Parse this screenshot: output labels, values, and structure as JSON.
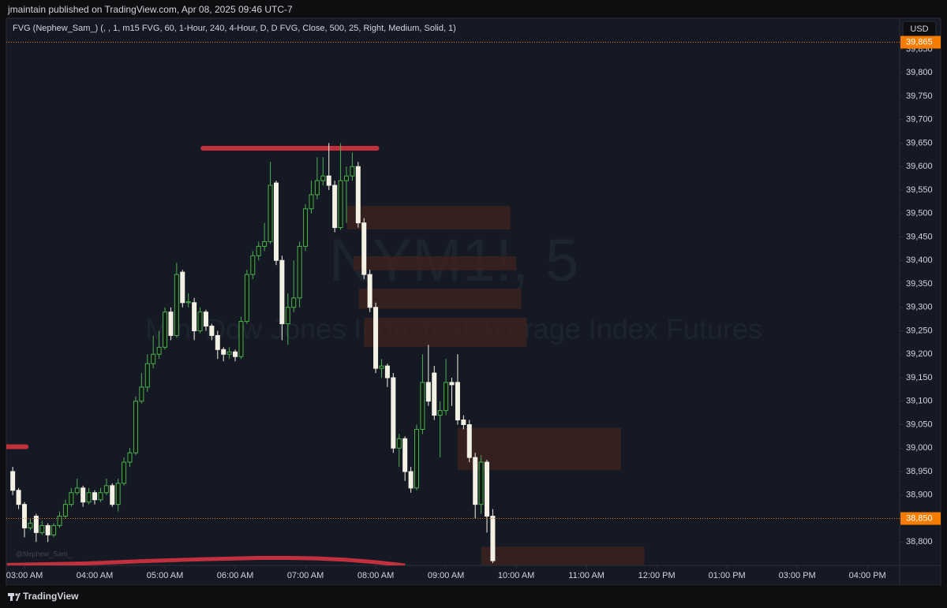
{
  "header": {
    "title": "jmaintain published on TradingView.com, Apr 08, 2025 09:46 UTC-7"
  },
  "footer": {
    "brand": "TradingView"
  },
  "chart_data": {
    "type": "candlestick",
    "indicator": "FVG (Nephew_Sam_) (, , 1, m15 FVG, 60, 1-Hour, 240, 4-Hour, D, D FVG, Close, 500, 25, Right, Medium, Solid, 1)",
    "symbol_watermark": "NYM1!, 5",
    "description_watermark": "Mini Dow Jones Industrial Average Index Futures",
    "author_watermark": "@Nephew_Sam_",
    "currency": "USD",
    "x": [
      -2,
      -1,
      0,
      1,
      2,
      3,
      4,
      5,
      6,
      7,
      8,
      9,
      10,
      11,
      12,
      13,
      14,
      15,
      16,
      17,
      18,
      19,
      20,
      21,
      22,
      23,
      24,
      25,
      26,
      27,
      28,
      29,
      30,
      31,
      32,
      33,
      34,
      35,
      36,
      37,
      38,
      39,
      40,
      41,
      42,
      43,
      44,
      45,
      46,
      47,
      48,
      49,
      50,
      51,
      52,
      53,
      54,
      55,
      56,
      57,
      58,
      59,
      60,
      61,
      62,
      63,
      64,
      65,
      66,
      67,
      68,
      69,
      70,
      71,
      72,
      73,
      74,
      75,
      76,
      77,
      78,
      79,
      80
    ],
    "open": [
      38950,
      38910,
      38880,
      38830,
      38855,
      38820,
      38835,
      38815,
      38835,
      38855,
      38880,
      38905,
      38915,
      38885,
      38905,
      38890,
      38905,
      38920,
      38880,
      38925,
      38970,
      38990,
      39100,
      39130,
      39180,
      39200,
      39215,
      39290,
      39240,
      39375,
      39310,
      39310,
      39250,
      39290,
      39260,
      39240,
      39210,
      39200,
      39205,
      39195,
      39270,
      39370,
      39410,
      39430,
      39440,
      39565,
      39400,
      39265,
      39300,
      39320,
      39430,
      39510,
      39540,
      39570,
      39580,
      39560,
      39470,
      39570,
      39580,
      39600,
      39480,
      39370,
      39300,
      39170,
      39175,
      39150,
      39000,
      39020,
      38950,
      38915,
      39040,
      39140,
      39160,
      39070,
      39080,
      39140,
      39140,
      39060,
      39050,
      38980,
      38880,
      38970,
      38855
    ],
    "high": [
      38960,
      38915,
      38885,
      38850,
      38860,
      38845,
      38840,
      38840,
      38865,
      38890,
      38915,
      38935,
      38920,
      38915,
      38910,
      38915,
      38935,
      38925,
      38935,
      38980,
      39000,
      39110,
      39160,
      39200,
      39240,
      39250,
      39300,
      39300,
      39395,
      39380,
      39330,
      39320,
      39300,
      39295,
      39265,
      39250,
      39215,
      39215,
      39210,
      39280,
      39380,
      39420,
      39440,
      39480,
      39610,
      39570,
      39410,
      39330,
      39400,
      39440,
      39520,
      39570,
      39620,
      39620,
      39650,
      39570,
      39650,
      39600,
      39630,
      39610,
      39490,
      39380,
      39310,
      39190,
      39180,
      39160,
      39030,
      39025,
      38960,
      39050,
      39200,
      39220,
      39175,
      39100,
      39190,
      39150,
      39200,
      39070,
      39060,
      38990,
      38985,
      38975,
      38870
    ],
    "low": [
      38900,
      38870,
      38810,
      38825,
      38800,
      38815,
      38800,
      38810,
      38830,
      38850,
      38875,
      38900,
      38875,
      38880,
      38880,
      38885,
      38900,
      38875,
      38865,
      38920,
      38960,
      38985,
      39095,
      39120,
      39170,
      39190,
      39210,
      39230,
      39235,
      39300,
      39300,
      39230,
      39245,
      39250,
      39230,
      39190,
      39185,
      39190,
      39185,
      39190,
      39265,
      39360,
      39400,
      39420,
      39435,
      39390,
      39230,
      39220,
      39290,
      39300,
      39420,
      39500,
      39530,
      39560,
      39550,
      39460,
      39465,
      39480,
      39570,
      39470,
      39360,
      39290,
      39160,
      39150,
      39130,
      38990,
      38960,
      38930,
      38905,
      38910,
      39030,
      39090,
      39060,
      38980,
      39070,
      39090,
      39050,
      39040,
      38970,
      38850,
      38860,
      38820,
      38755
    ],
    "close": [
      38910,
      38880,
      38830,
      38840,
      38820,
      38835,
      38815,
      38835,
      38855,
      38880,
      38905,
      38915,
      38885,
      38905,
      38890,
      38905,
      38920,
      38880,
      38925,
      38970,
      38990,
      39100,
      39130,
      39180,
      39200,
      39215,
      39290,
      39240,
      39370,
      39310,
      39312,
      39250,
      39290,
      39260,
      39240,
      39210,
      39200,
      39205,
      39195,
      39270,
      39370,
      39410,
      39430,
      39440,
      39560,
      39400,
      39265,
      39300,
      39320,
      39430,
      39510,
      39540,
      39570,
      39580,
      39560,
      39470,
      39570,
      39580,
      39600,
      39480,
      39370,
      39300,
      39170,
      39175,
      39150,
      39000,
      39020,
      38950,
      38915,
      39040,
      39140,
      39100,
      39070,
      39080,
      39140,
      39135,
      39060,
      39050,
      38980,
      38880,
      38970,
      38855,
      38760
    ],
    "bull_color": "#4caf50",
    "bear_color": "#f3f1e4",
    "zones": [
      {
        "x": [
          55.1,
          83.0
        ],
        "y": [
          39516,
          39466
        ]
      },
      {
        "x": [
          56.2,
          84.0
        ],
        "y": [
          39409,
          39379
        ]
      },
      {
        "x": [
          57.1,
          84.9
        ],
        "y": [
          39340,
          39297
        ]
      },
      {
        "x": [
          58.0,
          85.8
        ],
        "y": [
          39278,
          39216
        ]
      },
      {
        "x": [
          74.0,
          101.9
        ],
        "y": [
          39043,
          38953
        ]
      },
      {
        "x": [
          78.0,
          105.9
        ],
        "y": [
          38790,
          38751
        ]
      }
    ],
    "zone_color": "#3b2220",
    "levels": [
      {
        "x": [
          30.5,
          60.2
        ],
        "y": 39639
      },
      {
        "x": [
          -3.1,
          0.3
        ],
        "y": 39003
      }
    ],
    "level_color": "#c2303d",
    "ma": {
      "x": [
        -3,
        10,
        20,
        30,
        40,
        45,
        50,
        55,
        60,
        65
      ],
      "values": [
        38751,
        38754,
        38759,
        38763,
        38766,
        38766,
        38765,
        38762,
        38757,
        38750
      ],
      "color": "#c2303d"
    },
    "price_labels": [
      {
        "value": 39865,
        "label": "39,865"
      },
      {
        "value": 38850,
        "label": "38,850"
      }
    ],
    "price_label_color": "#f57c00",
    "xlim": [
      -3.1,
      149.5
    ],
    "ylim": [
      38750,
      39876
    ],
    "xticks": [
      {
        "value": 0,
        "label": "03:00 AM"
      },
      {
        "value": 12,
        "label": "04:00 AM"
      },
      {
        "value": 24,
        "label": "05:00 AM"
      },
      {
        "value": 36,
        "label": "06:00 AM"
      },
      {
        "value": 48,
        "label": "07:00 AM"
      },
      {
        "value": 60,
        "label": "08:00 AM"
      },
      {
        "value": 72,
        "label": "09:00 AM"
      },
      {
        "value": 84,
        "label": "10:00 AM"
      },
      {
        "value": 96,
        "label": "11:00 AM"
      },
      {
        "value": 108,
        "label": "12:00 PM"
      },
      {
        "value": 120,
        "label": "01:00 PM"
      },
      {
        "value": 132,
        "label": "03:00 PM"
      },
      {
        "value": 144,
        "label": "04:00 PM"
      }
    ],
    "yticks": [
      {
        "value": 38800,
        "label": "38,800"
      },
      {
        "value": 38850,
        "label": "38,850"
      },
      {
        "value": 38900,
        "label": "38,900"
      },
      {
        "value": 38950,
        "label": "38,950"
      },
      {
        "value": 39000,
        "label": "39,000"
      },
      {
        "value": 39050,
        "label": "39,050"
      },
      {
        "value": 39100,
        "label": "39,100"
      },
      {
        "value": 39150,
        "label": "39,150"
      },
      {
        "value": 39200,
        "label": "39,200"
      },
      {
        "value": 39250,
        "label": "39,250"
      },
      {
        "value": 39300,
        "label": "39,300"
      },
      {
        "value": 39350,
        "label": "39,350"
      },
      {
        "value": 39400,
        "label": "39,400"
      },
      {
        "value": 39450,
        "label": "39,450"
      },
      {
        "value": 39500,
        "label": "39,500"
      },
      {
        "value": 39550,
        "label": "39,550"
      },
      {
        "value": 39600,
        "label": "39,600"
      },
      {
        "value": 39650,
        "label": "39,650"
      },
      {
        "value": 39700,
        "label": "39,700"
      },
      {
        "value": 39750,
        "label": "39,750"
      },
      {
        "value": 39800,
        "label": "39,800"
      },
      {
        "value": 39850,
        "label": "39,850"
      }
    ]
  }
}
